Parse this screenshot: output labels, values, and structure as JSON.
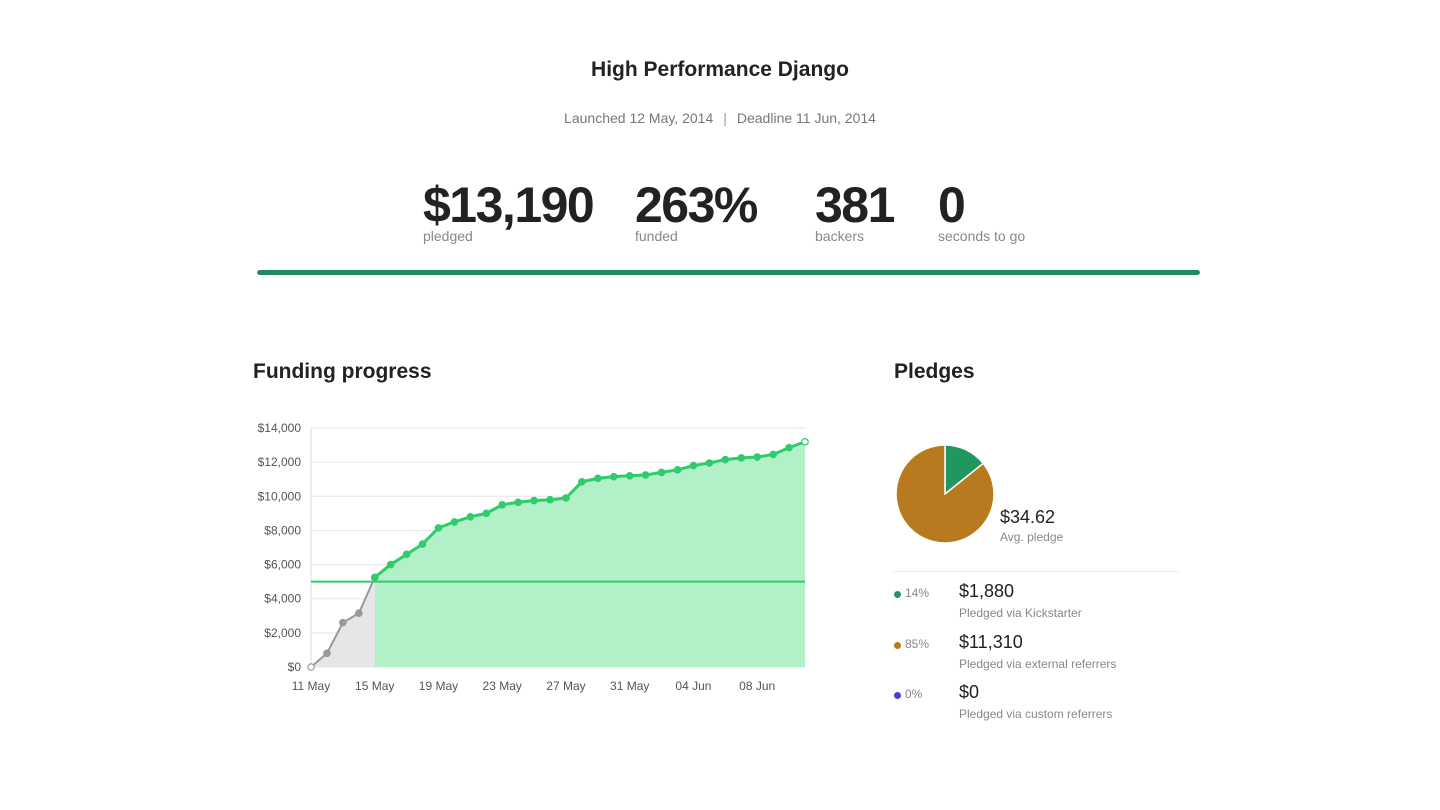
{
  "project": {
    "title": "High Performance Django",
    "launched": "Launched 12 May, 2014",
    "separator": "|",
    "deadline": "Deadline 11 Jun, 2014"
  },
  "stats": [
    {
      "value": "$13,190",
      "label": "pledged"
    },
    {
      "value": "263%",
      "label": "funded"
    },
    {
      "value": "381",
      "label": "backers"
    },
    {
      "value": "0",
      "label": "seconds to go"
    }
  ],
  "progress": {
    "fraction": 1.0,
    "color": "#1f8a5e"
  },
  "funding": {
    "heading": "Funding progress"
  },
  "pledges": {
    "heading": "Pledges",
    "avg_value": "$34.62",
    "avg_label": "Avg. pledge",
    "sources": [
      {
        "pct": "14%",
        "amount": "$1,880",
        "label": "Pledged via Kickstarter",
        "color": "#22965f"
      },
      {
        "pct": "85%",
        "amount": "$11,310",
        "label": "Pledged via external referrers",
        "color": "#b87a1e"
      },
      {
        "pct": "0%",
        "amount": "$0",
        "label": "Pledged via custom referrers",
        "color": "#4a3fd6"
      }
    ]
  },
  "chart_data": [
    {
      "type": "area",
      "title": "Funding progress",
      "xlabel": "",
      "ylabel": "",
      "ylim": [
        0,
        14000
      ],
      "goal": 5000,
      "x_start": "11 May",
      "x_ticks": [
        {
          "day": 0,
          "label": "11 May"
        },
        {
          "day": 4,
          "label": "15 May"
        },
        {
          "day": 8,
          "label": "19 May"
        },
        {
          "day": 12,
          "label": "23 May"
        },
        {
          "day": 16,
          "label": "27 May"
        },
        {
          "day": 20,
          "label": "31 May"
        },
        {
          "day": 24,
          "label": "04 Jun"
        },
        {
          "day": 28,
          "label": "08 Jun"
        }
      ],
      "y_ticks": [
        {
          "value": 0,
          "label": "$0"
        },
        {
          "value": 2000,
          "label": "$2,000"
        },
        {
          "value": 4000,
          "label": "$4,000"
        },
        {
          "value": 6000,
          "label": "$6,000"
        },
        {
          "value": 8000,
          "label": "$8,000"
        },
        {
          "value": 10000,
          "label": "$10,000"
        },
        {
          "value": 12000,
          "label": "$12,000"
        },
        {
          "value": 14000,
          "label": "$14,000"
        }
      ],
      "grid": true,
      "series": [
        {
          "color": "#999999",
          "fill": "#e6e6e9",
          "points": [
            [
              0,
              0
            ],
            [
              1,
              800
            ],
            [
              2,
              2600
            ],
            [
              3,
              3150
            ],
            [
              4,
              5250
            ]
          ]
        },
        {
          "color": "#2ecc6a",
          "fill": "#b2f0c8",
          "points": [
            [
              4,
              5250
            ],
            [
              5,
              6000
            ],
            [
              6,
              6600
            ],
            [
              7,
              7200
            ],
            [
              8,
              8150
            ],
            [
              9,
              8500
            ],
            [
              10,
              8800
            ],
            [
              11,
              9000
            ],
            [
              12,
              9500
            ],
            [
              13,
              9650
            ],
            [
              14,
              9750
            ],
            [
              15,
              9800
            ],
            [
              16,
              9900
            ],
            [
              17,
              10850
            ],
            [
              18,
              11050
            ],
            [
              19,
              11150
            ],
            [
              20,
              11200
            ],
            [
              21,
              11250
            ],
            [
              22,
              11400
            ],
            [
              23,
              11550
            ],
            [
              24,
              11800
            ],
            [
              25,
              11950
            ],
            [
              26,
              12150
            ],
            [
              27,
              12250
            ],
            [
              28,
              12300
            ],
            [
              29,
              12450
            ],
            [
              30,
              12850
            ],
            [
              31,
              13190
            ]
          ]
        }
      ]
    },
    {
      "type": "pie",
      "categories": [
        "Pledged via Kickstarter",
        "Pledged via external referrers",
        "Pledged via custom referrers"
      ],
      "values": [
        1880,
        11310,
        0
      ],
      "colors": [
        "#22965f",
        "#b87a1e",
        "#4a3fd6"
      ]
    }
  ]
}
